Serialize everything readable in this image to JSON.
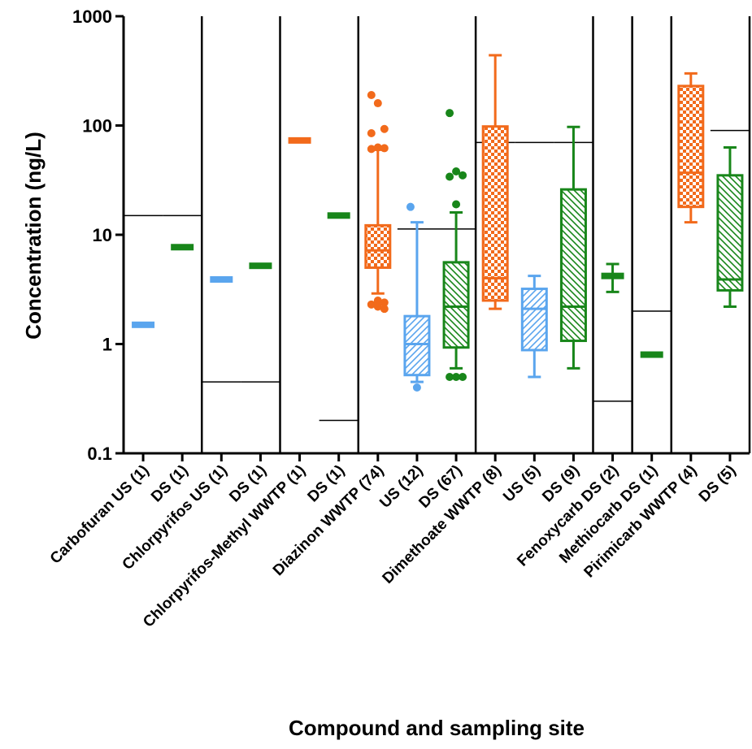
{
  "chart_data": {
    "type": "box",
    "x_label": "Compound and sampling site",
    "y_label": "Concentration (ng/L)",
    "log_y": true,
    "ylim": [
      0.1,
      1000
    ],
    "yticks": [
      0.1,
      1,
      10,
      100,
      1000
    ],
    "categories": [
      "Carbofuran US (1)",
      "DS (1)",
      "Chlorpyrifos US (1)",
      "DS (1)",
      "Chlorpyrifos-Methyl WWTP (1)",
      "DS (1)",
      "Diazinon WWTP (74)",
      "US (12)",
      "DS (67)",
      "Dimethoate WWTP (8)",
      "US (5)",
      "DS (9)",
      "Fenoxycarb DS (2)",
      "Methiocarb DS (1)",
      "Pirimicarb WWTP (4)",
      "DS (5)"
    ],
    "colors": [
      "#5aa5ee",
      "#18861a",
      "#5aa5ee",
      "#18861a",
      "#f26a1b",
      "#18861a",
      "#f26a1b",
      "#5aa5ee",
      "#18861a",
      "#f26a1b",
      "#5aa5ee",
      "#18861a",
      "#18861a",
      "#18861a",
      "#f26a1b",
      "#18861a"
    ],
    "patterns": [
      "hatch-up",
      "hatch-down",
      "hatch-up",
      "hatch-down",
      "checker",
      "hatch-down",
      "checker",
      "hatch-up",
      "hatch-down",
      "checker",
      "hatch-up",
      "hatch-down",
      "hatch-down",
      "hatch-down",
      "checker",
      "hatch-down"
    ],
    "boxes": [
      {
        "median": 1.5
      },
      {
        "median": 7.7
      },
      {
        "median": 3.9
      },
      {
        "median": 5.2
      },
      {
        "median": 73
      },
      {
        "median": 15
      },
      {
        "min": 2.9,
        "q1": 5.0,
        "median": 7.2,
        "q3": 12.2,
        "max": 60,
        "outliers": [
          190,
          160,
          93,
          85,
          63,
          62,
          61,
          2.5,
          2.4,
          2.3,
          2.2,
          2.1
        ]
      },
      {
        "min": 0.45,
        "q1": 0.52,
        "median": 1.0,
        "q3": 1.8,
        "max": 13,
        "outliers": [
          18,
          0.4
        ]
      },
      {
        "min": 0.6,
        "q1": 0.93,
        "median": 2.2,
        "q3": 5.6,
        "max": 16,
        "outliers": [
          130,
          38,
          35,
          34,
          19,
          0.5,
          0.5,
          0.5
        ]
      },
      {
        "min": 2.1,
        "q1": 2.5,
        "median": 4.0,
        "q3": 98,
        "max": 440
      },
      {
        "min": 0.5,
        "q1": 0.88,
        "median": 2.1,
        "q3": 3.2,
        "max": 4.2
      },
      {
        "min": 0.6,
        "q1": 1.07,
        "median": 2.2,
        "q3": 26,
        "max": 97
      },
      {
        "min": 3.0,
        "q1": 4.2,
        "median": 4.2,
        "q3": 4.2,
        "max": 5.4
      },
      {
        "median": 0.8
      },
      {
        "min": 13,
        "q1": 18,
        "median": 37,
        "q3": 230,
        "max": 300
      },
      {
        "min": 2.2,
        "q1": 3.1,
        "median": 3.9,
        "q3": 35,
        "max": 63
      }
    ],
    "reference": [
      15,
      15,
      0.45,
      0.45,
      null,
      0.2,
      null,
      11.3,
      11.3,
      70,
      70,
      70,
      0.3,
      2.0,
      null,
      90
    ]
  }
}
